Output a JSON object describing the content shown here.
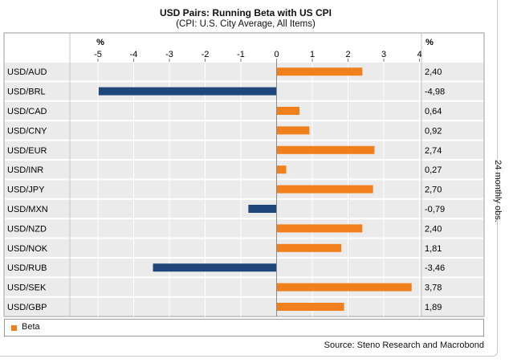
{
  "chart_data": {
    "type": "bar",
    "orientation": "horizontal",
    "title": "USD Pairs: Running Beta with US CPI",
    "subtitle": "(CPI: U.S. City Average, All Items)",
    "x_unit": "%",
    "value_unit": "%",
    "xlim": [
      -5,
      4
    ],
    "xticks": [
      "-5",
      "-4",
      "-3",
      "-2",
      "-1",
      "0",
      "1",
      "2",
      "3",
      "4"
    ],
    "grid": true,
    "categories": [
      "USD/AUD",
      "USD/BRL",
      "USD/CAD",
      "USD/CNY",
      "USD/EUR",
      "USD/INR",
      "USD/JPY",
      "USD/MXN",
      "USD/NZD",
      "USD/NOK",
      "USD/RUB",
      "USD/SEK",
      "USD/GBP"
    ],
    "series": [
      {
        "name": "Beta",
        "values": [
          2.4,
          -4.98,
          0.64,
          0.92,
          2.74,
          0.27,
          2.7,
          -0.79,
          2.4,
          1.81,
          -3.46,
          3.78,
          1.89
        ],
        "value_labels": [
          "2,40",
          "-4,98",
          "0,64",
          "0,92",
          "2,74",
          "0,27",
          "2,70",
          "-0,79",
          "2,40",
          "1,81",
          "-3,46",
          "3,78",
          "1,89"
        ]
      }
    ],
    "colors": {
      "positive": "#f07f1c",
      "negative": "#1f477b",
      "row_band": "#ebebeb",
      "grid": "#ffffff"
    },
    "legend_position": "bottom-left",
    "side_note": "24 monthly obs.",
    "source": "Source: Steno Research and Macrobond"
  }
}
